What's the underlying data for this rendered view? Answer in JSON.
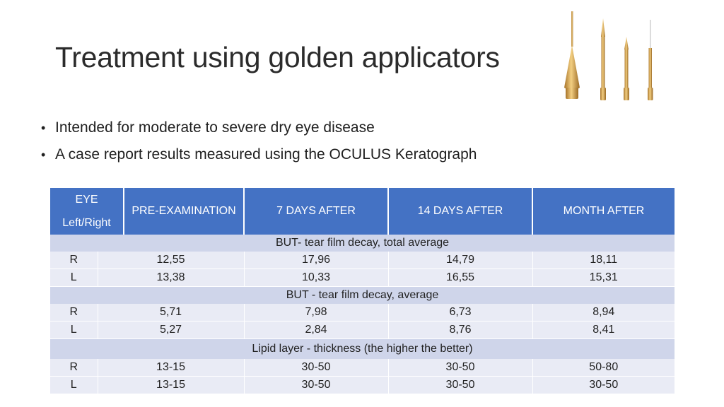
{
  "slide": {
    "title": "Treatment using golden applicators",
    "bullets": [
      "Intended for moderate to severe dry eye disease",
      "A case report results measured using the OCULUS Keratograph"
    ]
  },
  "table": {
    "header": {
      "eye_line1": "EYE",
      "eye_line2": "Left/Right",
      "pre": "PRE-EXAMINATION",
      "d7": "7 DAYS AFTER",
      "d14": "14 DAYS AFTER",
      "month": "MONTH AFTER"
    },
    "sections": [
      {
        "label": "BUT- tear film decay, total average",
        "rows": [
          {
            "eye": "R",
            "pre": "12,55",
            "d7": "17,96",
            "d14": "14,79",
            "month": "18,11"
          },
          {
            "eye": "L",
            "pre": "13,38",
            "d7": "10,33",
            "d14": "16,55",
            "month": "15,31"
          }
        ]
      },
      {
        "label": "BUT - tear film decay, average",
        "rows": [
          {
            "eye": "R",
            "pre": "5,71",
            "d7": "7,98",
            "d14": "6,73",
            "month": "8,94"
          },
          {
            "eye": "L",
            "pre": "5,27",
            "d7": "2,84",
            "d14": "8,76",
            "month": "8,41"
          }
        ]
      },
      {
        "label": "Lipid layer - thickness (the higher the better)",
        "rows": [
          {
            "eye": "R",
            "pre": "13-15",
            "d7": "30-50",
            "d14": "30-50",
            "month": "50-80"
          },
          {
            "eye": "L",
            "pre": "13-15",
            "d7": "30-50",
            "d14": "30-50",
            "month": "30-50"
          }
        ]
      }
    ]
  },
  "colors": {
    "header_bg": "#4472c4",
    "section_bg": "#cfd5ea",
    "row_bg": "#e9ebf5",
    "gold": "#d4a24a"
  },
  "icons": {
    "applicators": "golden-applicators-image"
  }
}
